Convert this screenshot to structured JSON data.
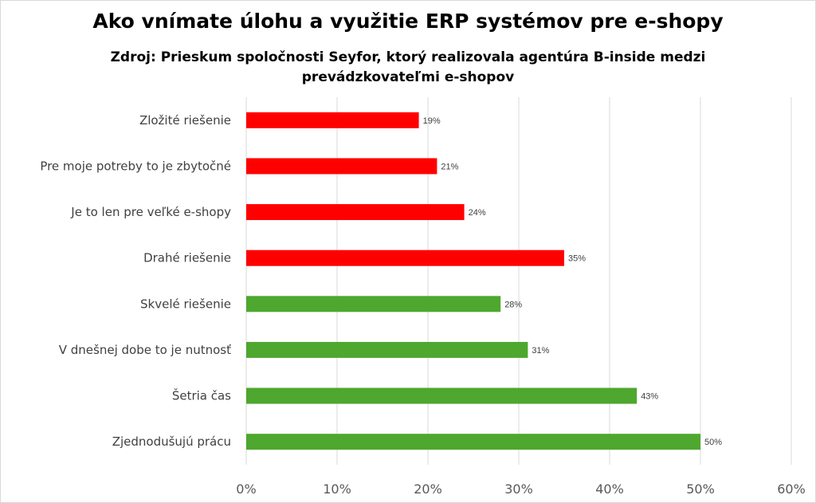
{
  "chart_data": {
    "type": "bar",
    "orientation": "horizontal",
    "title": "Ako vnímate úlohu a využitie ERP systémov pre e-shopy",
    "subtitle": "Zdroj: Prieskum spoločnosti Seyfor, ktorý realizovala agentúra B-inside medzi prevádzkovateľmi e-shopov",
    "categories": [
      "Zložité riešenie",
      "Pre moje potreby to je zbytočné",
      "Je to len pre veľké e-shopy",
      "Drahé riešenie",
      "Skvelé riešenie",
      "V dnešnej dobe to je nutnosť",
      "Šetria čas",
      "Zjednodušujú prácu"
    ],
    "values": [
      19,
      21,
      24,
      35,
      28,
      31,
      43,
      50
    ],
    "value_labels": [
      "19%",
      "21%",
      "24%",
      "35%",
      "28%",
      "31%",
      "43%",
      "50%"
    ],
    "colors": [
      "#ff0000",
      "#ff0000",
      "#ff0000",
      "#ff0000",
      "#4ea72e",
      "#4ea72e",
      "#4ea72e",
      "#4ea72e"
    ],
    "xlim": [
      0,
      60
    ],
    "xticks": [
      "0%",
      "10%",
      "20%",
      "30%",
      "40%",
      "50%",
      "60%"
    ],
    "grid": true,
    "xlabel": "",
    "ylabel": ""
  }
}
